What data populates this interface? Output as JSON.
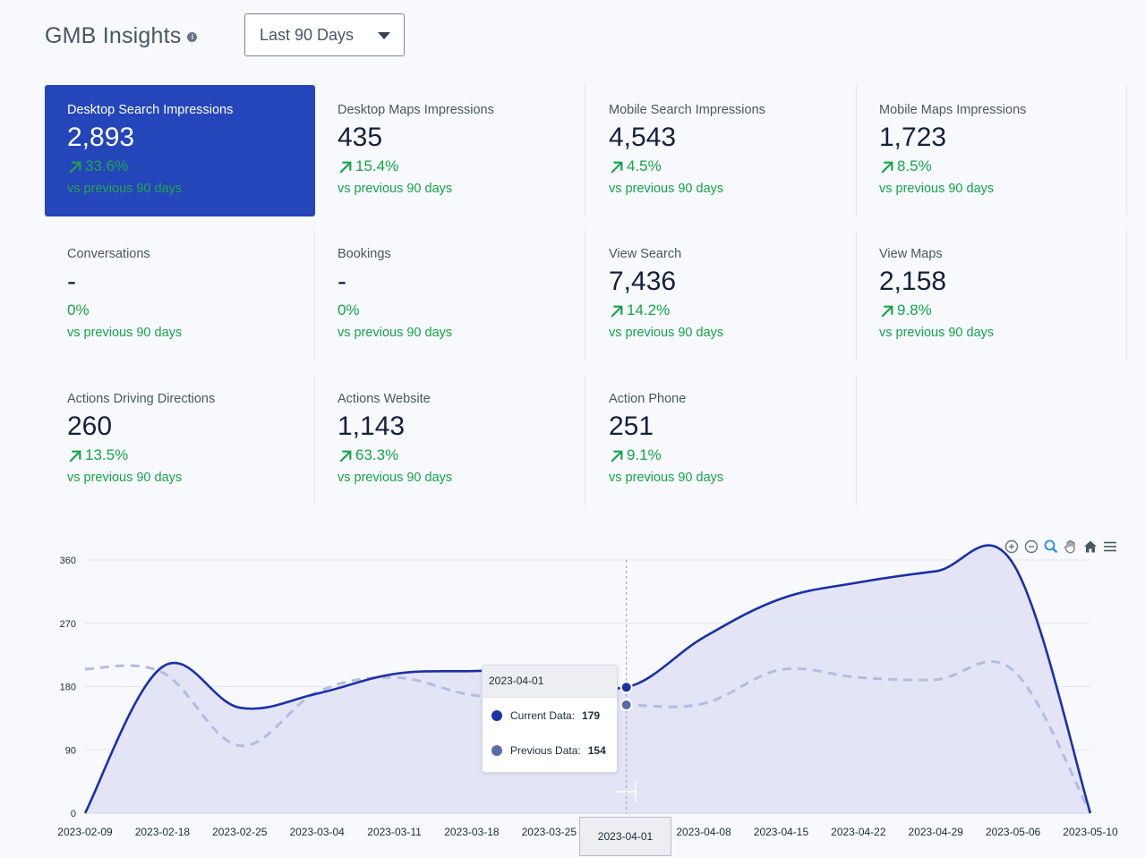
{
  "header": {
    "title": "GMB Insights",
    "info_icon": "info-icon",
    "range_select": {
      "selected": "Last 90 Days",
      "caret_icon": "caret-down-icon"
    }
  },
  "colors": {
    "active_card_bg": "#2545bb",
    "positive": "#16a34a",
    "current_series": "#1c30a8",
    "previous_series": "#b6bbe0",
    "area_fill": "#dfe2f4"
  },
  "cards": [
    {
      "label": "Desktop Search Impressions",
      "value": "2,893",
      "change": "33.6%",
      "trend": "up",
      "sub": "vs previous 90 days",
      "active": true
    },
    {
      "label": "Desktop Maps Impressions",
      "value": "435",
      "change": "15.4%",
      "trend": "up",
      "sub": "vs previous 90 days"
    },
    {
      "label": "Mobile Search Impressions",
      "value": "4,543",
      "change": "4.5%",
      "trend": "up",
      "sub": "vs previous 90 days"
    },
    {
      "label": "Mobile Maps Impressions",
      "value": "1,723",
      "change": "8.5%",
      "trend": "up",
      "sub": "vs previous 90 days"
    },
    {
      "label": "Conversations",
      "value": "-",
      "change": "0%",
      "trend": "none",
      "sub": "vs previous 90 days"
    },
    {
      "label": "Bookings",
      "value": "-",
      "change": "0%",
      "trend": "none",
      "sub": "vs previous 90 days"
    },
    {
      "label": "View Search",
      "value": "7,436",
      "change": "14.2%",
      "trend": "up",
      "sub": "vs previous 90 days"
    },
    {
      "label": "View Maps",
      "value": "2,158",
      "change": "9.8%",
      "trend": "up",
      "sub": "vs previous 90 days"
    },
    {
      "label": "Actions Driving Directions",
      "value": "260",
      "change": "13.5%",
      "trend": "up",
      "sub": "vs previous 90 days"
    },
    {
      "label": "Actions Website",
      "value": "1,143",
      "change": "63.3%",
      "trend": "up",
      "sub": "vs previous 90 days"
    },
    {
      "label": "Action Phone",
      "value": "251",
      "change": "9.1%",
      "trend": "up",
      "sub": "vs previous 90 days"
    }
  ],
  "toolbar": [
    "zoom-in-icon",
    "zoom-out-icon",
    "zoom-select-icon",
    "pan-hand-icon",
    "home-reset-icon",
    "menu-icon"
  ],
  "chart_data": {
    "type": "area",
    "title": "",
    "xlabel": "",
    "ylabel": "",
    "ylim": [
      0,
      360
    ],
    "yticks": [
      0,
      90,
      180,
      270,
      360
    ],
    "grid": true,
    "x": [
      "2023-02-09",
      "2023-02-18",
      "2023-02-25",
      "2023-03-04",
      "2023-03-11",
      "2023-03-18",
      "2023-03-25",
      "2023-04-01",
      "2023-04-08",
      "2023-04-15",
      "2023-04-22",
      "2023-04-29",
      "2023-05-06",
      "2023-05-10"
    ],
    "series": [
      {
        "name": "Current Data",
        "style": "solid-area",
        "values": [
          0,
          208,
          150,
          170,
          198,
          202,
          202,
          179,
          250,
          305,
          328,
          344,
          355,
          0
        ]
      },
      {
        "name": "Previous Data",
        "style": "dashed",
        "values": [
          205,
          200,
          96,
          172,
          193,
          168,
          160,
          154,
          156,
          204,
          193,
          190,
          203,
          0
        ]
      }
    ],
    "tooltip": {
      "date": "2023-04-01",
      "rows": [
        {
          "name": "Current Data",
          "value": "179",
          "color": "#1c30a8"
        },
        {
          "name": "Previous Data",
          "value": "154",
          "color": "#5c6aa8"
        }
      ]
    },
    "crosshair_label": "2023-04-01"
  }
}
